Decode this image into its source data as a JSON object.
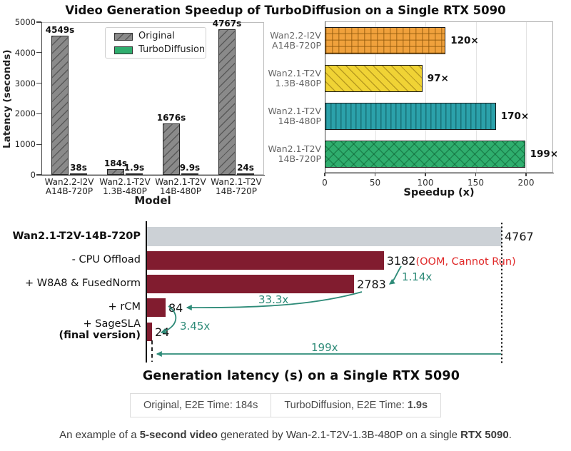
{
  "title": "Video Generation Speedup of TurboDiffusion on a Single RTX 5090",
  "colors": {
    "original_gray": "#8a8a8a",
    "turbo_green": "#2fae6e",
    "maroon": "#811c2f",
    "baseline_gray": "#ccd1d6",
    "arrow_teal": "#2e8b78",
    "oom_red": "#e02828"
  },
  "chart_data": [
    {
      "type": "bar",
      "ylabel": "Latency (seconds)",
      "xlabel": "Model",
      "ylim": [
        0,
        5000
      ],
      "yticks": [
        0,
        1000,
        2000,
        3000,
        4000,
        5000
      ],
      "categories_lines": [
        [
          "Wan2.2-I2V",
          "A14B-720P"
        ],
        [
          "Wan2.1-T2V",
          "1.3B-480P"
        ],
        [
          "Wan2.1-T2V",
          "14B-480P"
        ],
        [
          "Wan2.1-T2V",
          "14B-720P"
        ]
      ],
      "legend_position": "top-center",
      "series": [
        {
          "name": "Original",
          "color": "#8a8a8a",
          "hatch": "/",
          "hatch_color": "rgba(30,30,30,0.45)",
          "values": [
            4549,
            184,
            1676,
            4767
          ],
          "value_labels": [
            "4549s",
            "184s",
            "1676s",
            "4767s"
          ]
        },
        {
          "name": "TurboDiffusion",
          "color": "#2fae6e",
          "hatch": "",
          "hatch_color": "",
          "values": [
            38,
            1.9,
            9.9,
            24
          ],
          "value_labels": [
            "38s",
            "1.9s",
            "9.9s",
            "24s"
          ]
        }
      ]
    },
    {
      "type": "bar-horizontal",
      "xlabel": "Speedup (x)",
      "xlim": [
        0,
        227
      ],
      "xticks": [
        0,
        50,
        100,
        150,
        200
      ],
      "categories_lines": [
        [
          "Wan2.2-I2V",
          "A14B-720P"
        ],
        [
          "Wan2.1-T2V",
          "1.3B-480P"
        ],
        [
          "Wan2.1-T2V",
          "14B-480P"
        ],
        [
          "Wan2.1-T2V",
          "14B-720P"
        ]
      ],
      "values": [
        120,
        97,
        170,
        199
      ],
      "value_labels": [
        "120×",
        "97×",
        "170×",
        "199×"
      ],
      "bar_colors": [
        "#f0a13c",
        "#f0d335",
        "#2ba1aa",
        "#2fae6e"
      ],
      "hatches": [
        "+",
        "\\",
        "|",
        "x"
      ],
      "hatch_colors": [
        "rgba(140,85,10,0.55)",
        "rgba(130,100,10,0.5)",
        "rgba(10,75,80,0.55)",
        "rgba(10,90,45,0.5)"
      ]
    },
    {
      "type": "bar-horizontal",
      "title": "Generation latency (s) on a Single RTX 5090",
      "xmax": 4767,
      "rows": [
        {
          "label": "Wan2.1-T2V-14B-720P",
          "label_bold": true,
          "value": 4767,
          "value_label": "4767",
          "color": "#ccd1d6"
        },
        {
          "label": "- CPU Offload",
          "value": 3182,
          "value_label": "3182",
          "note": "(OOM, Cannot Run)",
          "color": "#811c2f"
        },
        {
          "label": "+ W8A8 & FusedNorm",
          "value": 2783,
          "value_label": "2783",
          "color": "#811c2f"
        },
        {
          "label": "+ rCM",
          "value": 84,
          "value_label": "84",
          "color": "#811c2f"
        },
        {
          "label": "+ SageSLA",
          "label_line2": "(final version)",
          "value": 24,
          "value_label": "24",
          "color": "#811c2f"
        }
      ],
      "annotations": {
        "w8a8_vs_cpu": "1.14x",
        "rcm_vs_w8a8": "33.3x",
        "sagesla_vs_rcm": "3.45x",
        "total": "199x"
      }
    }
  ],
  "e2e_table": {
    "cells": [
      {
        "prefix": "Original, E2E Time: ",
        "value": "184s",
        "value_bold": false
      },
      {
        "prefix": "TurboDiffusion, E2E Time: ",
        "value": "1.9s",
        "value_bold": true
      }
    ]
  },
  "caption": {
    "segments": [
      {
        "text": "An example of a ",
        "bold": false
      },
      {
        "text": "5-second video",
        "bold": true
      },
      {
        "text": " generated by Wan-2.1-T2V-1.3B-480P on a single ",
        "bold": false
      },
      {
        "text": "RTX 5090",
        "bold": true
      },
      {
        "text": ".",
        "bold": false
      }
    ]
  }
}
